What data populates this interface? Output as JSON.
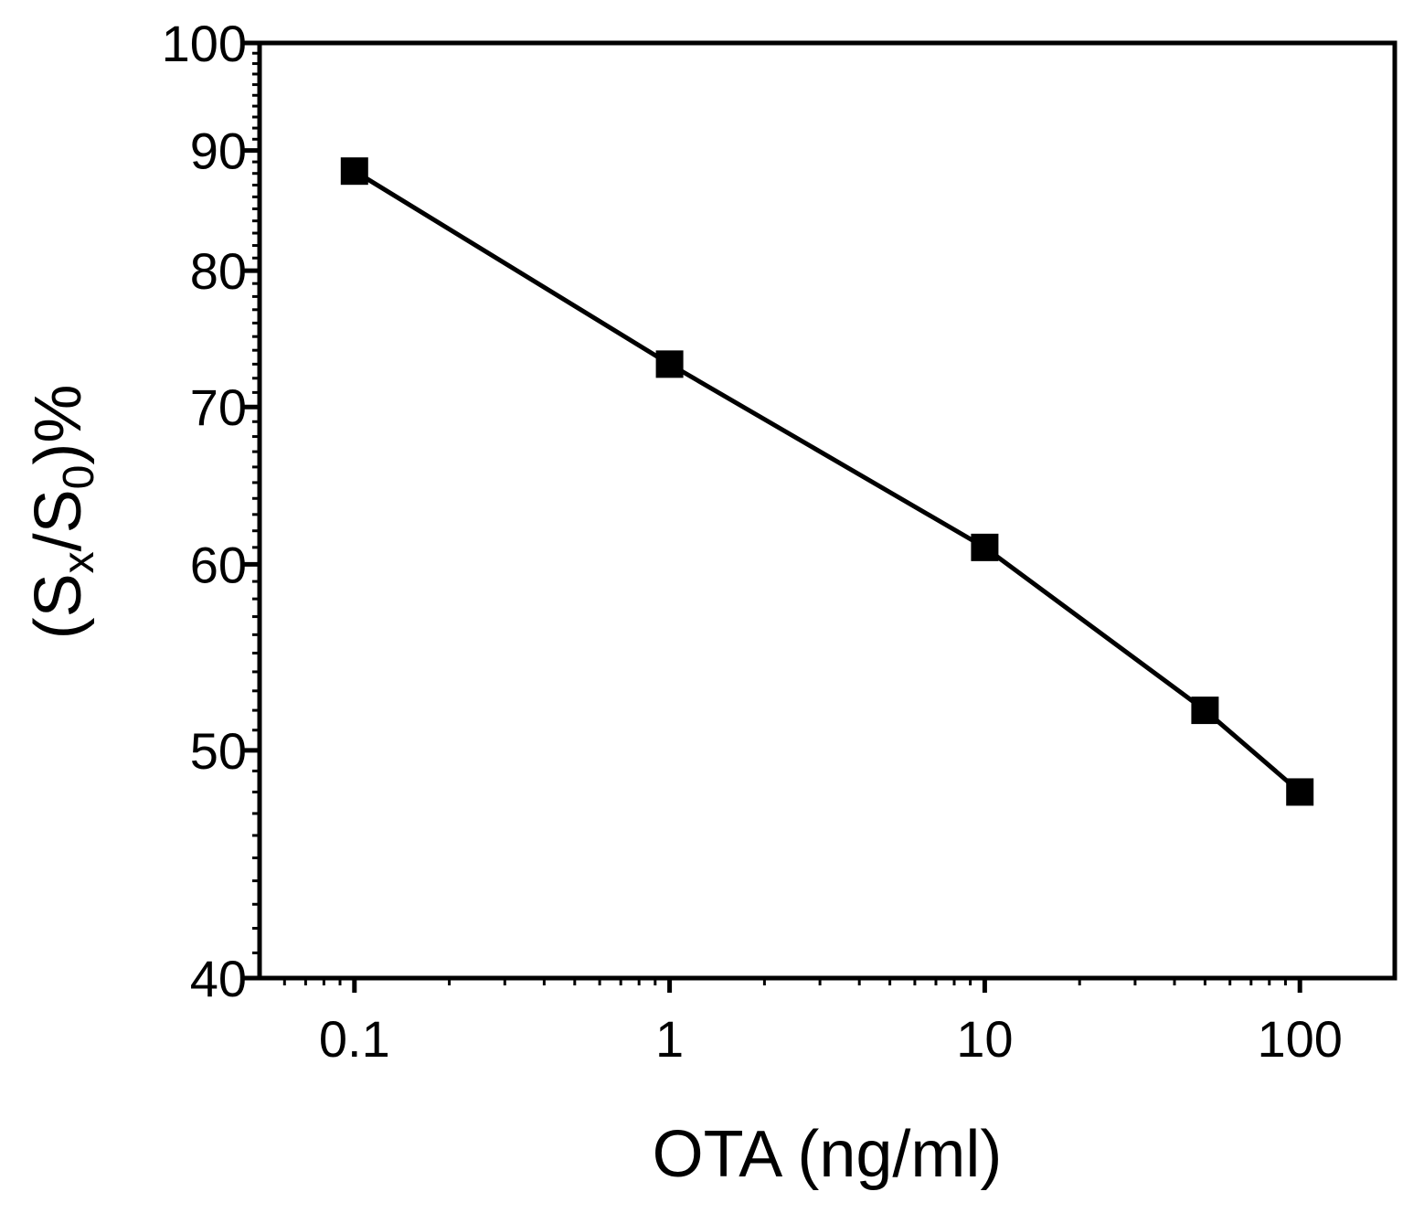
{
  "chart_data": {
    "type": "line",
    "title": "",
    "xlabel": "OTA (ng/ml)",
    "ylabel": {
      "open": "(S",
      "sub1": "x",
      "slash": "/S",
      "sub2": "0",
      "close": ")%"
    },
    "x_scale": "log",
    "y_scale": "log",
    "xlim": [
      0.05,
      200
    ],
    "ylim": [
      40,
      100
    ],
    "x_ticks": [
      {
        "value": 0.1,
        "label": "0.1"
      },
      {
        "value": 1,
        "label": "1"
      },
      {
        "value": 10,
        "label": "10"
      },
      {
        "value": 100,
        "label": "100"
      }
    ],
    "y_ticks": [
      {
        "value": 40,
        "label": "40"
      },
      {
        "value": 50,
        "label": "50"
      },
      {
        "value": 60,
        "label": "60"
      },
      {
        "value": 70,
        "label": "70"
      },
      {
        "value": 80,
        "label": "80"
      },
      {
        "value": 90,
        "label": "90"
      },
      {
        "value": 100,
        "label": "100"
      }
    ],
    "series": [
      {
        "name": "OTA",
        "color": "#000000",
        "marker": "square",
        "x": [
          0.1,
          1,
          10,
          50,
          100
        ],
        "y": [
          88.2,
          73.0,
          61.0,
          52.0,
          48.0
        ]
      }
    ],
    "grid": false,
    "legend": "none"
  }
}
